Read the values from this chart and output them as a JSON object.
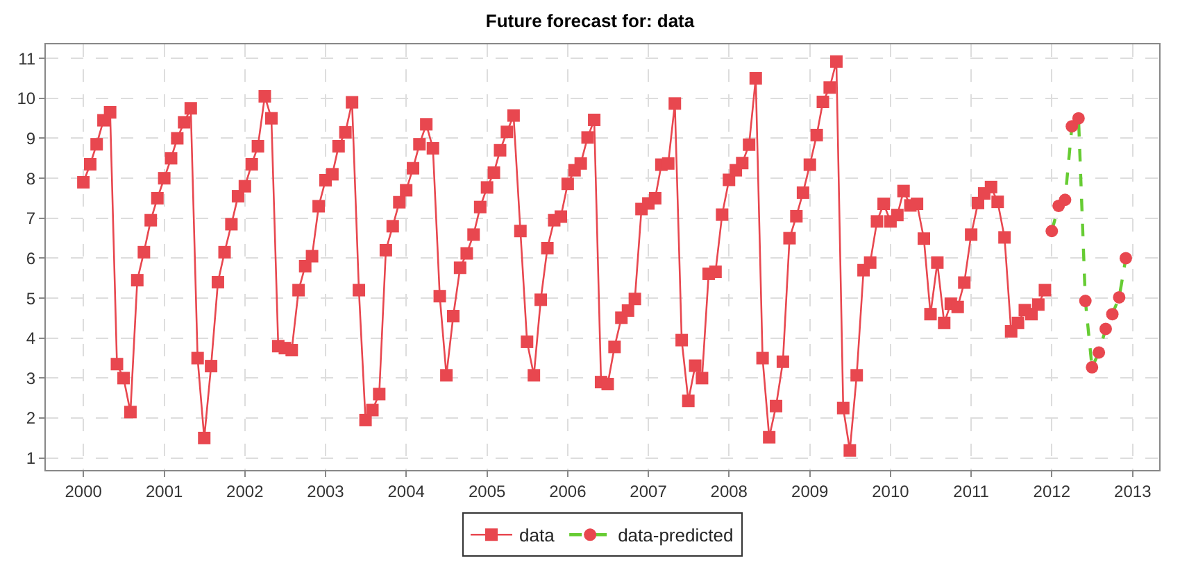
{
  "chart_data": {
    "type": "line",
    "title": "Future forecast for: data",
    "series": [
      {
        "name": "data",
        "color": "#e8474f",
        "marker": "square",
        "x": [
          "2000-01",
          "2000-02",
          "2000-03",
          "2000-04",
          "2000-05",
          "2000-06",
          "2000-07",
          "2000-08",
          "2000-09",
          "2000-10",
          "2000-11",
          "2000-12",
          "2001-01",
          "2001-02",
          "2001-03",
          "2001-04",
          "2001-05",
          "2001-06",
          "2001-07",
          "2001-08",
          "2001-09",
          "2001-10",
          "2001-11",
          "2001-12",
          "2002-01",
          "2002-02",
          "2002-03",
          "2002-04",
          "2002-05",
          "2002-06",
          "2002-07",
          "2002-08",
          "2002-09",
          "2002-10",
          "2002-11",
          "2002-12",
          "2003-01",
          "2003-02",
          "2003-03",
          "2003-04",
          "2003-05",
          "2003-06",
          "2003-07",
          "2003-08",
          "2003-09",
          "2003-10",
          "2003-11",
          "2003-12",
          "2004-01",
          "2004-02",
          "2004-03",
          "2004-04",
          "2004-05",
          "2004-06",
          "2004-07",
          "2004-08",
          "2004-09",
          "2004-10",
          "2004-11",
          "2004-12",
          "2005-01",
          "2005-02",
          "2005-03",
          "2005-04",
          "2005-05",
          "2005-06",
          "2005-07",
          "2005-08",
          "2005-09",
          "2005-10",
          "2005-11",
          "2005-12",
          "2006-01",
          "2006-02",
          "2006-03",
          "2006-04",
          "2006-05",
          "2006-06",
          "2006-07",
          "2006-08",
          "2006-09",
          "2006-10",
          "2006-11",
          "2006-12",
          "2007-01",
          "2007-02",
          "2007-03",
          "2007-04",
          "2007-05",
          "2007-06",
          "2007-07",
          "2007-08",
          "2007-09",
          "2007-10",
          "2007-11",
          "2007-12",
          "2008-01",
          "2008-02",
          "2008-03",
          "2008-04",
          "2008-05",
          "2008-06",
          "2008-07",
          "2008-08",
          "2008-09",
          "2008-10",
          "2008-11",
          "2008-12",
          "2009-01",
          "2009-02",
          "2009-03",
          "2009-04",
          "2009-05",
          "2009-06",
          "2009-07",
          "2009-08",
          "2009-09",
          "2009-10",
          "2009-11",
          "2009-12",
          "2010-01",
          "2010-02",
          "2010-03",
          "2010-04",
          "2010-05",
          "2010-06",
          "2010-07",
          "2010-08",
          "2010-09",
          "2010-10",
          "2010-11",
          "2010-12",
          "2011-01",
          "2011-02",
          "2011-03",
          "2011-04",
          "2011-05",
          "2011-06",
          "2011-07",
          "2011-08",
          "2011-09",
          "2011-10",
          "2011-11",
          "2011-12"
        ],
        "values": [
          7.9,
          8.35,
          8.85,
          9.45,
          9.65,
          3.35,
          3.0,
          2.15,
          5.45,
          6.15,
          6.95,
          7.5,
          8.0,
          8.5,
          9.0,
          9.4,
          9.75,
          3.5,
          1.5,
          3.3,
          5.4,
          6.15,
          6.85,
          7.55,
          7.8,
          8.35,
          8.8,
          10.05,
          9.5,
          3.8,
          3.75,
          3.7,
          5.2,
          5.8,
          6.05,
          7.3,
          7.95,
          8.1,
          8.8,
          9.15,
          9.9,
          5.2,
          1.95,
          2.2,
          2.6,
          6.2,
          6.8,
          7.4,
          7.7,
          8.25,
          8.85,
          9.35,
          8.75,
          5.05,
          3.07,
          4.55,
          5.76,
          6.12,
          6.59,
          7.28,
          7.77,
          8.14,
          8.7,
          9.16,
          9.57,
          6.68,
          3.91,
          3.07,
          4.96,
          6.25,
          6.95,
          7.04,
          7.86,
          8.2,
          8.37,
          9.02,
          9.46,
          2.9,
          2.85,
          3.78,
          4.51,
          4.69,
          4.98,
          7.23,
          7.37,
          7.5,
          8.34,
          8.37,
          9.87,
          3.95,
          2.43,
          3.31,
          3.0,
          5.61,
          5.66,
          7.09,
          7.96,
          8.2,
          8.38,
          8.84,
          10.5,
          3.5,
          1.52,
          2.3,
          3.41,
          6.5,
          7.05,
          7.64,
          8.34,
          9.08,
          9.91,
          10.27,
          10.92,
          2.25,
          1.19,
          3.07,
          5.7,
          5.89,
          6.92,
          7.36,
          6.92,
          7.08,
          7.68,
          7.32,
          7.36,
          6.49,
          4.6,
          5.89,
          4.38,
          4.86,
          4.78,
          5.39,
          6.59,
          7.38,
          7.62,
          7.78,
          7.41,
          6.52,
          4.17,
          4.38,
          4.7,
          4.6,
          4.84,
          5.2
        ]
      },
      {
        "name": "data-predicted",
        "color": "#66cc33",
        "marker": "circle",
        "line_style": "dashed",
        "colors": [
          "#e8474f",
          "#e8474f",
          "#e8474f",
          "#e8474f",
          "#e8474f",
          "#e8474f",
          "#e8474f",
          "#e8474f",
          "#e8474f",
          "#e8474f",
          "#e8474f",
          "#e8474f"
        ],
        "x": [
          "2012-01",
          "2012-02",
          "2012-03",
          "2012-04",
          "2012-05",
          "2012-06",
          "2012-07",
          "2012-08",
          "2012-09",
          "2012-10",
          "2012-11",
          "2012-12"
        ],
        "values": [
          6.68,
          7.31,
          7.46,
          9.3,
          9.5,
          4.93,
          3.27,
          3.64,
          4.23,
          4.6,
          5.02,
          6.0
        ]
      }
    ],
    "xlim": [
      "1999-07-15",
      "2013-05-01"
    ],
    "xticks": [
      {
        "value": "2000-01-01",
        "label": "2000"
      },
      {
        "value": "2001-01-01",
        "label": "2001"
      },
      {
        "value": "2002-01-01",
        "label": "2002"
      },
      {
        "value": "2003-01-01",
        "label": "2003"
      },
      {
        "value": "2004-01-01",
        "label": "2004"
      },
      {
        "value": "2005-01-01",
        "label": "2005"
      },
      {
        "value": "2006-01-01",
        "label": "2006"
      },
      {
        "value": "2007-01-01",
        "label": "2007"
      },
      {
        "value": "2008-01-01",
        "label": "2008"
      },
      {
        "value": "2009-01-01",
        "label": "2009"
      },
      {
        "value": "2010-01-01",
        "label": "2010"
      },
      {
        "value": "2011-01-01",
        "label": "2011"
      },
      {
        "value": "2012-01-01",
        "label": "2012"
      },
      {
        "value": "2013-01-01",
        "label": "2013"
      }
    ],
    "ylim": [
      0.7,
      11.35
    ],
    "yticks": [
      1,
      2,
      3,
      4,
      5,
      6,
      7,
      8,
      9,
      10,
      11
    ],
    "grid": true,
    "legend": "bottom"
  }
}
